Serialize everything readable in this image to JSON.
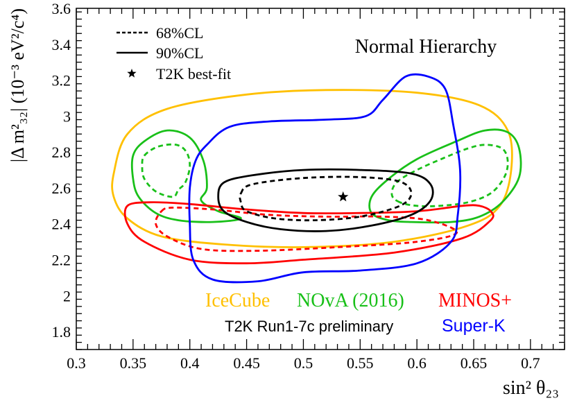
{
  "chart_data": {
    "type": "line",
    "title": "Normal Hierarchy",
    "xlabel": "sin² θ₂₃",
    "ylabel": "|Δ m²₃₂| (10⁻³ eV²/c⁴)",
    "xlim": [
      0.3,
      0.73
    ],
    "ylim": [
      1.7,
      3.6
    ],
    "x_ticks": [
      "0.3",
      "0.35",
      "0.4",
      "0.45",
      "0.5",
      "0.55",
      "0.6",
      "0.65",
      "0.7"
    ],
    "y_ticks": [
      "1.8",
      "2",
      "2.2",
      "2.4",
      "2.6",
      "2.8",
      "3",
      "3.2",
      "3.4",
      "3.6"
    ],
    "grid": false,
    "colors": {
      "icecube": "#ffc000",
      "nova": "#19c019",
      "minos": "#ff0000",
      "superk": "#0000ff",
      "t2k": "#000000"
    },
    "legend": {
      "placement": "top-left",
      "entries": [
        {
          "label": "68%CL",
          "style": "dashed"
        },
        {
          "label": "90%CL",
          "style": "solid"
        },
        {
          "label": "T2K best-fit",
          "style": "star"
        }
      ]
    },
    "annotations": {
      "icecube": "IceCube",
      "nova": "NOvA (2016)",
      "minos": "MINOS+",
      "t2k": "T2K Run1-7c preliminary",
      "superk": "Super-K"
    },
    "best_fit": {
      "name": "T2K best-fit",
      "x": 0.535,
      "y": 2.55
    },
    "series": [
      {
        "name": "IceCube 90%CL",
        "color": "#ffc000",
        "style": "solid",
        "points": [
          [
            0.333,
            2.68
          ],
          [
            0.345,
            2.9
          ],
          [
            0.38,
            3.04
          ],
          [
            0.45,
            3.12
          ],
          [
            0.52,
            3.145
          ],
          [
            0.6,
            3.13
          ],
          [
            0.655,
            3.06
          ],
          [
            0.68,
            2.92
          ],
          [
            0.683,
            2.7
          ],
          [
            0.673,
            2.5
          ],
          [
            0.645,
            2.39
          ],
          [
            0.58,
            2.3
          ],
          [
            0.5,
            2.27
          ],
          [
            0.43,
            2.285
          ],
          [
            0.375,
            2.33
          ],
          [
            0.345,
            2.43
          ],
          [
            0.333,
            2.55
          ],
          [
            0.333,
            2.68
          ]
        ]
      },
      {
        "name": "NOvA 90%CL (left)",
        "color": "#19c019",
        "style": "solid",
        "points": [
          [
            0.35,
            2.78
          ],
          [
            0.36,
            2.86
          ],
          [
            0.38,
            2.92
          ],
          [
            0.4,
            2.88
          ],
          [
            0.412,
            2.75
          ],
          [
            0.415,
            2.6
          ],
          [
            0.41,
            2.53
          ],
          [
            0.425,
            2.47
          ],
          [
            0.445,
            2.43
          ],
          [
            0.42,
            2.41
          ],
          [
            0.39,
            2.42
          ],
          [
            0.37,
            2.46
          ],
          [
            0.355,
            2.55
          ],
          [
            0.35,
            2.65
          ],
          [
            0.35,
            2.78
          ]
        ]
      },
      {
        "name": "NOvA 90%CL (right)",
        "color": "#19c019",
        "style": "solid",
        "points": [
          [
            0.595,
            2.41
          ],
          [
            0.575,
            2.42
          ],
          [
            0.56,
            2.46
          ],
          [
            0.56,
            2.55
          ],
          [
            0.575,
            2.65
          ],
          [
            0.6,
            2.76
          ],
          [
            0.635,
            2.86
          ],
          [
            0.66,
            2.92
          ],
          [
            0.68,
            2.91
          ],
          [
            0.69,
            2.82
          ],
          [
            0.69,
            2.66
          ],
          [
            0.675,
            2.52
          ],
          [
            0.655,
            2.44
          ],
          [
            0.63,
            2.41
          ],
          [
            0.595,
            2.41
          ]
        ]
      },
      {
        "name": "NOvA 68%CL (left)",
        "color": "#19c019",
        "style": "dashed",
        "points": [
          [
            0.36,
            2.78
          ],
          [
            0.372,
            2.83
          ],
          [
            0.388,
            2.84
          ],
          [
            0.397,
            2.8
          ],
          [
            0.4,
            2.72
          ],
          [
            0.396,
            2.63
          ],
          [
            0.39,
            2.59
          ],
          [
            0.385,
            2.55
          ],
          [
            0.37,
            2.58
          ],
          [
            0.36,
            2.65
          ],
          [
            0.358,
            2.72
          ],
          [
            0.36,
            2.78
          ]
        ]
      },
      {
        "name": "NOvA 68%CL (right)",
        "color": "#19c019",
        "style": "dashed",
        "points": [
          [
            0.585,
            2.52
          ],
          [
            0.578,
            2.56
          ],
          [
            0.582,
            2.63
          ],
          [
            0.6,
            2.7
          ],
          [
            0.625,
            2.77
          ],
          [
            0.645,
            2.82
          ],
          [
            0.66,
            2.84
          ],
          [
            0.675,
            2.82
          ],
          [
            0.68,
            2.75
          ],
          [
            0.677,
            2.66
          ],
          [
            0.665,
            2.57
          ],
          [
            0.645,
            2.52
          ],
          [
            0.62,
            2.5
          ],
          [
            0.6,
            2.5
          ],
          [
            0.585,
            2.52
          ]
        ]
      },
      {
        "name": "MINOS+ 90%CL",
        "color": "#ff0000",
        "style": "solid",
        "points": [
          [
            0.345,
            2.5
          ],
          [
            0.365,
            2.52
          ],
          [
            0.4,
            2.51
          ],
          [
            0.45,
            2.48
          ],
          [
            0.5,
            2.46
          ],
          [
            0.55,
            2.46
          ],
          [
            0.6,
            2.47
          ],
          [
            0.64,
            2.5
          ],
          [
            0.655,
            2.5
          ],
          [
            0.665,
            2.47
          ],
          [
            0.665,
            2.42
          ],
          [
            0.64,
            2.32
          ],
          [
            0.58,
            2.24
          ],
          [
            0.5,
            2.2
          ],
          [
            0.45,
            2.18
          ],
          [
            0.4,
            2.2
          ],
          [
            0.36,
            2.3
          ],
          [
            0.345,
            2.4
          ],
          [
            0.345,
            2.5
          ]
        ]
      },
      {
        "name": "MINOS+ 68%CL",
        "color": "#ff0000",
        "style": "dashed",
        "points": [
          [
            0.375,
            2.47
          ],
          [
            0.385,
            2.49
          ],
          [
            0.42,
            2.48
          ],
          [
            0.47,
            2.45
          ],
          [
            0.52,
            2.44
          ],
          [
            0.57,
            2.44
          ],
          [
            0.61,
            2.42
          ],
          [
            0.635,
            2.35
          ],
          [
            0.6,
            2.3
          ],
          [
            0.53,
            2.27
          ],
          [
            0.46,
            2.25
          ],
          [
            0.41,
            2.26
          ],
          [
            0.38,
            2.33
          ],
          [
            0.37,
            2.4
          ],
          [
            0.375,
            2.47
          ]
        ]
      },
      {
        "name": "Super-K 90%CL",
        "color": "#0000ff",
        "style": "solid",
        "points": [
          [
            0.405,
            2.75
          ],
          [
            0.415,
            2.84
          ],
          [
            0.435,
            2.94
          ],
          [
            0.47,
            2.97
          ],
          [
            0.52,
            2.98
          ],
          [
            0.555,
            3.0
          ],
          [
            0.57,
            3.09
          ],
          [
            0.59,
            3.22
          ],
          [
            0.61,
            3.22
          ],
          [
            0.625,
            3.15
          ],
          [
            0.632,
            2.95
          ],
          [
            0.638,
            2.7
          ],
          [
            0.636,
            2.45
          ],
          [
            0.63,
            2.3
          ],
          [
            0.6,
            2.18
          ],
          [
            0.55,
            2.14
          ],
          [
            0.5,
            2.13
          ],
          [
            0.46,
            2.08
          ],
          [
            0.42,
            2.09
          ],
          [
            0.403,
            2.2
          ],
          [
            0.4,
            2.4
          ],
          [
            0.4,
            2.6
          ],
          [
            0.405,
            2.75
          ]
        ]
      },
      {
        "name": "T2K 90%CL",
        "color": "#000000",
        "style": "solid",
        "points": [
          [
            0.425,
            2.55
          ],
          [
            0.43,
            2.63
          ],
          [
            0.455,
            2.67
          ],
          [
            0.5,
            2.7
          ],
          [
            0.55,
            2.7
          ],
          [
            0.595,
            2.68
          ],
          [
            0.612,
            2.62
          ],
          [
            0.612,
            2.53
          ],
          [
            0.595,
            2.45
          ],
          [
            0.56,
            2.39
          ],
          [
            0.52,
            2.36
          ],
          [
            0.48,
            2.37
          ],
          [
            0.45,
            2.41
          ],
          [
            0.43,
            2.47
          ],
          [
            0.425,
            2.55
          ]
        ]
      },
      {
        "name": "T2K 68%CL",
        "color": "#000000",
        "style": "dashed",
        "points": [
          [
            0.445,
            2.57
          ],
          [
            0.455,
            2.62
          ],
          [
            0.5,
            2.655
          ],
          [
            0.55,
            2.66
          ],
          [
            0.585,
            2.635
          ],
          [
            0.595,
            2.57
          ],
          [
            0.585,
            2.5
          ],
          [
            0.55,
            2.44
          ],
          [
            0.51,
            2.42
          ],
          [
            0.475,
            2.43
          ],
          [
            0.45,
            2.47
          ],
          [
            0.445,
            2.52
          ],
          [
            0.445,
            2.57
          ]
        ]
      }
    ]
  }
}
